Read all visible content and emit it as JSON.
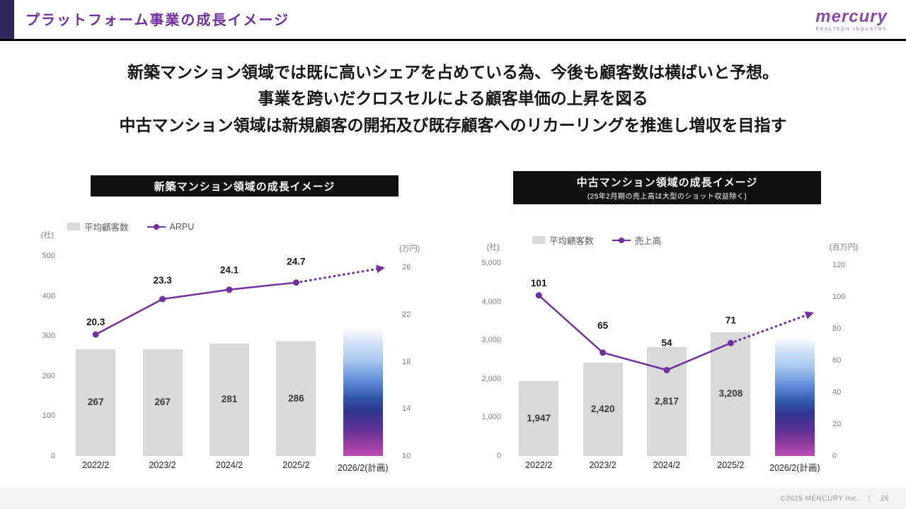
{
  "header": {
    "title": "プラットフォーム事業の成長イメージ",
    "logo": "mercury",
    "logo_sub": "REALTECH INDUSTRY"
  },
  "headline": {
    "line1": "新築マンション領域では既に高いシェアを占めている為、今後も顧客数は横ばいと予想。",
    "line2": "事業を跨いだクロスセルによる顧客単価の上昇を図る",
    "line3": "中古マンション領域は新規顧客の開拓及び既存顧客へのリカーリングを推進し増収を目指す"
  },
  "footer": {
    "copyright": "©2025 MERCURY Inc.",
    "separator": "|",
    "page": "26"
  },
  "colors": {
    "accent_purple": "#7030a0",
    "bar_gray": "#d9d9d9",
    "chart_title_bg": "#111111",
    "header_accent": "#2f265c",
    "point_label": "#161616"
  },
  "chart_data": [
    {
      "type": "bar+line",
      "title": "新築マンション領域の成長イメージ",
      "subtitle": "",
      "categories": [
        "2022/2",
        "2023/2",
        "2024/2",
        "2025/2",
        "2026/2(計画)"
      ],
      "legend": [
        {
          "type": "bar",
          "label": "平均顧客数"
        },
        {
          "type": "line",
          "label": "ARPU"
        }
      ],
      "left_axis": {
        "unit": "(社)",
        "min": 0,
        "max": 500,
        "ticks": [
          "0",
          "100",
          "200",
          "300",
          "400",
          "500"
        ]
      },
      "right_axis": {
        "unit": "(万円)",
        "min": 10,
        "max": 26,
        "ticks": [
          "10",
          "14",
          "18",
          "22",
          "26"
        ]
      },
      "bars": {
        "name": "平均顧客数",
        "axis": "left",
        "values": [
          267,
          267,
          281,
          286
        ],
        "labels": [
          "267",
          "267",
          "281",
          "286"
        ]
      },
      "plan_bar": {
        "category": "2026/2(計画)",
        "approx_value": 320,
        "style": "blue-purple-gradient",
        "label": ""
      },
      "line": {
        "name": "ARPU",
        "axis": "right",
        "values": [
          20.3,
          23.3,
          24.1,
          24.7
        ],
        "labels": [
          "20.3",
          "23.3",
          "24.1",
          "24.7"
        ]
      },
      "trend_arrow": true
    },
    {
      "type": "bar+line",
      "title": "中古マンション領域の成長イメージ",
      "subtitle": "(25年2月期の売上高は大型のショット収益除く)",
      "categories": [
        "2022/2",
        "2023/2",
        "2024/2",
        "2025/2",
        "2026/2(計画)"
      ],
      "legend": [
        {
          "type": "bar",
          "label": "平均顧客数"
        },
        {
          "type": "line",
          "label": "売上高"
        }
      ],
      "left_axis": {
        "unit": "(社)",
        "min": 0,
        "max": 5000,
        "ticks": [
          "0",
          "1,000",
          "2,000",
          "3,000",
          "4,000",
          "5,000"
        ]
      },
      "right_axis": {
        "unit": "(百万円)",
        "min": 0,
        "max": 120,
        "ticks": [
          "0",
          "20",
          "40",
          "60",
          "80",
          "100",
          "120"
        ]
      },
      "bars": {
        "name": "平均顧客数",
        "axis": "left",
        "values": [
          1947,
          2420,
          2817,
          3208
        ],
        "labels": [
          "1,947",
          "2,420",
          "2,817",
          "3,208"
        ]
      },
      "plan_bar": {
        "category": "2026/2(計画)",
        "approx_value": 3100,
        "style": "blue-purple-gradient",
        "label": ""
      },
      "line": {
        "name": "売上高",
        "axis": "right",
        "values": [
          101,
          65,
          54,
          71
        ],
        "labels": [
          "101",
          "65",
          "54",
          "71"
        ]
      },
      "trend_arrow": true
    }
  ]
}
